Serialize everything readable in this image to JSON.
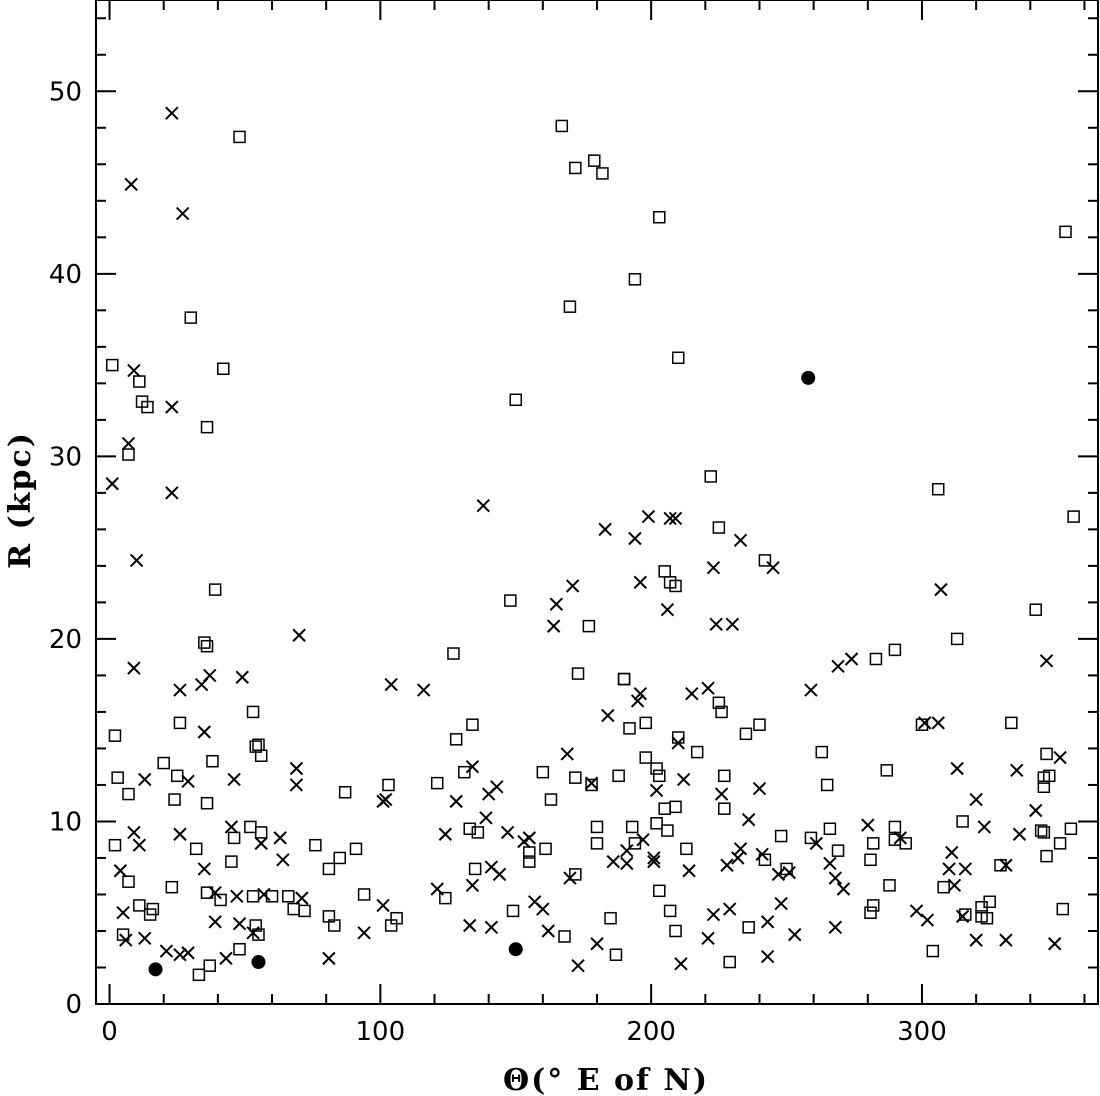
{
  "chart_data": {
    "type": "scatter",
    "xlabel": "Θ(° E of N)",
    "ylabel": "R (kpc)",
    "xlim": [
      -5,
      365
    ],
    "ylim": [
      0,
      55
    ],
    "xticks": [
      0,
      100,
      200,
      300
    ],
    "yticks": [
      0,
      10,
      20,
      30,
      40,
      50
    ],
    "x_minor_step": 20,
    "y_minor_step": 2,
    "grid": false,
    "legend": "none",
    "series": [
      {
        "marker": "cross",
        "color": "#000000",
        "points": [
          [
            23,
            48.8
          ],
          [
            8,
            44.9
          ],
          [
            27,
            43.3
          ],
          [
            9,
            34.7
          ],
          [
            23,
            32.7
          ],
          [
            7,
            30.7
          ],
          [
            1,
            28.5
          ],
          [
            23,
            28
          ],
          [
            10,
            24.3
          ],
          [
            70,
            20.2
          ],
          [
            9,
            18.4
          ],
          [
            37,
            18
          ],
          [
            49,
            17.9
          ],
          [
            26,
            17.2
          ],
          [
            34,
            17.5
          ],
          [
            104,
            17.5
          ],
          [
            116,
            17.2
          ],
          [
            35,
            14.9
          ],
          [
            69,
            12.9
          ],
          [
            13,
            12.3
          ],
          [
            29,
            12.2
          ],
          [
            46,
            12.3
          ],
          [
            69,
            12
          ],
          [
            102,
            11.2
          ],
          [
            101,
            11.1
          ],
          [
            9,
            9.4
          ],
          [
            11,
            8.7
          ],
          [
            26,
            9.3
          ],
          [
            45,
            9.7
          ],
          [
            56,
            8.8
          ],
          [
            63,
            9.1
          ],
          [
            4,
            7.3
          ],
          [
            35,
            7.4
          ],
          [
            64,
            7.9
          ],
          [
            5,
            5
          ],
          [
            39,
            6.1
          ],
          [
            47,
            5.9
          ],
          [
            57,
            6
          ],
          [
            71,
            5.8
          ],
          [
            39,
            4.5
          ],
          [
            48,
            4.4
          ],
          [
            53,
            3.9
          ],
          [
            6,
            3.5
          ],
          [
            13,
            3.6
          ],
          [
            21,
            2.9
          ],
          [
            26,
            2.7
          ],
          [
            29,
            2.8
          ],
          [
            43,
            2.5
          ],
          [
            81,
            2.5
          ],
          [
            94,
            3.9
          ],
          [
            101,
            5.4
          ],
          [
            121,
            6.3
          ],
          [
            124,
            9.3
          ],
          [
            128,
            11.1
          ],
          [
            134,
            13
          ],
          [
            138,
            27.3
          ],
          [
            140,
            11.5
          ],
          [
            143,
            11.9
          ],
          [
            147,
            9.4
          ],
          [
            153,
            8.9
          ],
          [
            155,
            9.1
          ],
          [
            134,
            6.5
          ],
          [
            141,
            7.5
          ],
          [
            144,
            7.1
          ],
          [
            139,
            10.2
          ],
          [
            133,
            4.3
          ],
          [
            141,
            4.2
          ],
          [
            157,
            5.6
          ],
          [
            160,
            5.2
          ],
          [
            162,
            4
          ],
          [
            164,
            20.7
          ],
          [
            165,
            21.9
          ],
          [
            171,
            22.9
          ],
          [
            169,
            13.7
          ],
          [
            170,
            6.9
          ],
          [
            173,
            2.1
          ],
          [
            178,
            12.1
          ],
          [
            184,
            15.8
          ],
          [
            183,
            26
          ],
          [
            186,
            7.8
          ],
          [
            180,
            3.3
          ],
          [
            191,
            8.4
          ],
          [
            191,
            7.7
          ],
          [
            194,
            25.5
          ],
          [
            196,
            23.1
          ],
          [
            196,
            17
          ],
          [
            199,
            26.7
          ],
          [
            195,
            16.6
          ],
          [
            197,
            9
          ],
          [
            201,
            7.8
          ],
          [
            201,
            8
          ],
          [
            202,
            11.7
          ],
          [
            206,
            21.6
          ],
          [
            207,
            26.6
          ],
          [
            209,
            26.6
          ],
          [
            210,
            14.3
          ],
          [
            212,
            12.3
          ],
          [
            215,
            17
          ],
          [
            214,
            7.3
          ],
          [
            211,
            2.2
          ],
          [
            221,
            17.3
          ],
          [
            223,
            23.9
          ],
          [
            224,
            20.8
          ],
          [
            226,
            11.5
          ],
          [
            230,
            20.8
          ],
          [
            233,
            25.4
          ],
          [
            233,
            8.5
          ],
          [
            228,
            7.6
          ],
          [
            232,
            8
          ],
          [
            229,
            5.2
          ],
          [
            223,
            4.9
          ],
          [
            221,
            3.6
          ],
          [
            236,
            10.1
          ],
          [
            240,
            11.8
          ],
          [
            245,
            23.9
          ],
          [
            241,
            8.2
          ],
          [
            247,
            7.1
          ],
          [
            243,
            4.5
          ],
          [
            248,
            5.5
          ],
          [
            243,
            2.6
          ],
          [
            251,
            7.2
          ],
          [
            253,
            3.8
          ],
          [
            259,
            17.2
          ],
          [
            261,
            8.8
          ],
          [
            269,
            18.5
          ],
          [
            274,
            18.9
          ],
          [
            266,
            7.7
          ],
          [
            268,
            6.9
          ],
          [
            271,
            6.3
          ],
          [
            268,
            4.2
          ],
          [
            280,
            9.8
          ],
          [
            292,
            9.1
          ],
          [
            298,
            5.1
          ],
          [
            302,
            4.6
          ],
          [
            301,
            15.4
          ],
          [
            306,
            15.4
          ],
          [
            307,
            22.7
          ],
          [
            313,
            12.9
          ],
          [
            311,
            8.3
          ],
          [
            310,
            7.4
          ],
          [
            312,
            6.5
          ],
          [
            316,
            7.4
          ],
          [
            315,
            4.8
          ],
          [
            320,
            11.2
          ],
          [
            323,
            9.7
          ],
          [
            320,
            3.5
          ],
          [
            331,
            7.6
          ],
          [
            331,
            3.5
          ],
          [
            335,
            12.8
          ],
          [
            336,
            9.3
          ],
          [
            342,
            10.6
          ],
          [
            346,
            18.8
          ],
          [
            349,
            3.3
          ],
          [
            351,
            13.5
          ]
        ]
      },
      {
        "marker": "square",
        "color": "#000000",
        "points": [
          [
            1,
            35
          ],
          [
            7,
            30.1
          ],
          [
            11,
            34.1
          ],
          [
            12,
            33
          ],
          [
            14,
            32.7
          ],
          [
            30,
            37.6
          ],
          [
            42,
            34.8
          ],
          [
            48,
            47.5
          ],
          [
            36,
            31.6
          ],
          [
            39,
            22.7
          ],
          [
            35,
            19.8
          ],
          [
            36,
            19.6
          ],
          [
            2,
            14.7
          ],
          [
            3,
            12.4
          ],
          [
            7,
            11.5
          ],
          [
            20,
            13.2
          ],
          [
            26,
            15.4
          ],
          [
            25,
            12.5
          ],
          [
            24,
            11.2
          ],
          [
            36,
            11
          ],
          [
            38,
            13.3
          ],
          [
            53,
            16
          ],
          [
            55,
            14.2
          ],
          [
            54,
            14.1
          ],
          [
            56,
            13.6
          ],
          [
            2,
            8.7
          ],
          [
            7,
            6.7
          ],
          [
            11,
            5.4
          ],
          [
            16,
            5.2
          ],
          [
            15,
            4.9
          ],
          [
            23,
            6.4
          ],
          [
            32,
            8.5
          ],
          [
            36,
            6.1
          ],
          [
            41,
            5.7
          ],
          [
            45,
            7.8
          ],
          [
            46,
            9.1
          ],
          [
            52,
            9.7
          ],
          [
            56,
            9.4
          ],
          [
            5,
            3.8
          ],
          [
            33,
            1.6
          ],
          [
            37,
            2.1
          ],
          [
            48,
            3
          ],
          [
            53,
            5.9
          ],
          [
            55,
            3.8
          ],
          [
            54,
            4.3
          ],
          [
            60,
            5.9
          ],
          [
            66,
            5.9
          ],
          [
            68,
            5.2
          ],
          [
            72,
            5.1
          ],
          [
            76,
            8.7
          ],
          [
            81,
            7.4
          ],
          [
            85,
            8
          ],
          [
            87,
            11.6
          ],
          [
            91,
            8.5
          ],
          [
            94,
            6
          ],
          [
            81,
            4.8
          ],
          [
            83,
            4.3
          ],
          [
            103,
            12
          ],
          [
            104,
            4.3
          ],
          [
            106,
            4.7
          ],
          [
            121,
            12.1
          ],
          [
            124,
            5.8
          ],
          [
            127,
            19.2
          ],
          [
            128,
            14.5
          ],
          [
            131,
            12.7
          ],
          [
            133,
            9.6
          ],
          [
            134,
            15.3
          ],
          [
            136,
            9.4
          ],
          [
            135,
            7.4
          ],
          [
            148,
            22.1
          ],
          [
            150,
            33.1
          ],
          [
            149,
            5.1
          ],
          [
            155,
            8.3
          ],
          [
            155,
            7.8
          ],
          [
            160,
            12.7
          ],
          [
            161,
            8.5
          ],
          [
            163,
            11.2
          ],
          [
            167,
            48.1
          ],
          [
            170,
            38.2
          ],
          [
            172,
            45.8
          ],
          [
            173,
            18.1
          ],
          [
            172,
            12.4
          ],
          [
            172,
            7.1
          ],
          [
            168,
            3.7
          ],
          [
            179,
            46.2
          ],
          [
            182,
            45.5
          ],
          [
            177,
            20.7
          ],
          [
            178,
            12
          ],
          [
            180,
            9.7
          ],
          [
            180,
            8.8
          ],
          [
            185,
            4.7
          ],
          [
            188,
            12.5
          ],
          [
            190,
            17.8
          ],
          [
            190,
            17.8
          ],
          [
            192,
            15.1
          ],
          [
            193,
            9.7
          ],
          [
            194,
            8.8
          ],
          [
            187,
            2.7
          ],
          [
            194,
            39.7
          ],
          [
            198,
            15.4
          ],
          [
            198,
            13.5
          ],
          [
            202,
            9.9
          ],
          [
            202,
            12.9
          ],
          [
            203,
            12.5
          ],
          [
            205,
            10.7
          ],
          [
            206,
            9.5
          ],
          [
            203,
            6.2
          ],
          [
            207,
            5.1
          ],
          [
            209,
            4
          ],
          [
            203,
            43.1
          ],
          [
            210,
            35.4
          ],
          [
            205,
            23.7
          ],
          [
            207,
            23.1
          ],
          [
            209,
            22.9
          ],
          [
            210,
            14.6
          ],
          [
            209,
            10.8
          ],
          [
            213,
            8.5
          ],
          [
            217,
            13.8
          ],
          [
            222,
            28.9
          ],
          [
            225,
            26.1
          ],
          [
            225,
            16.5
          ],
          [
            226,
            16
          ],
          [
            227,
            12.5
          ],
          [
            227,
            10.7
          ],
          [
            229,
            2.3
          ],
          [
            235,
            14.8
          ],
          [
            240,
            15.3
          ],
          [
            242,
            24.3
          ],
          [
            242,
            7.9
          ],
          [
            248,
            9.2
          ],
          [
            250,
            7.4
          ],
          [
            236,
            4.2
          ],
          [
            259,
            9.1
          ],
          [
            263,
            13.8
          ],
          [
            265,
            12
          ],
          [
            266,
            9.6
          ],
          [
            269,
            8.4
          ],
          [
            282,
            8.8
          ],
          [
            281,
            7.9
          ],
          [
            282,
            5.4
          ],
          [
            281,
            5
          ],
          [
            283,
            18.9
          ],
          [
            287,
            12.8
          ],
          [
            288,
            6.5
          ],
          [
            290,
            19.4
          ],
          [
            290,
            9.7
          ],
          [
            290,
            9
          ],
          [
            294,
            8.8
          ],
          [
            300,
            15.3
          ],
          [
            306,
            28.2
          ],
          [
            308,
            6.4
          ],
          [
            304,
            2.9
          ],
          [
            313,
            20
          ],
          [
            315,
            10
          ],
          [
            316,
            4.9
          ],
          [
            322,
            5.3
          ],
          [
            322,
            4.8
          ],
          [
            324,
            4.7
          ],
          [
            325,
            5.6
          ],
          [
            329,
            7.6
          ],
          [
            333,
            15.4
          ],
          [
            342,
            21.6
          ],
          [
            344,
            9.5
          ],
          [
            345,
            9.4
          ],
          [
            345,
            12.4
          ],
          [
            345,
            11.9
          ],
          [
            346,
            13.7
          ],
          [
            347,
            12.5
          ],
          [
            346,
            8.1
          ],
          [
            351,
            8.8
          ],
          [
            353,
            42.3
          ],
          [
            352,
            5.2
          ],
          [
            356,
            26.7
          ],
          [
            355,
            9.6
          ]
        ]
      },
      {
        "marker": "dot",
        "color": "#000000",
        "points": [
          [
            17,
            1.9
          ],
          [
            55,
            2.3
          ],
          [
            150,
            3
          ],
          [
            258,
            34.3
          ]
        ]
      }
    ]
  }
}
